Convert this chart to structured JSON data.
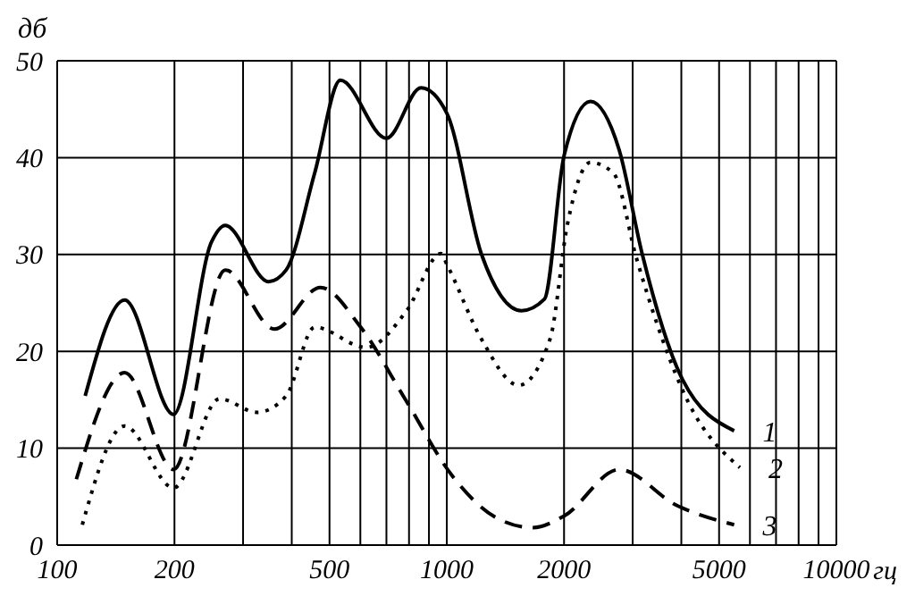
{
  "chart_data": {
    "type": "line",
    "xlabel": "гц",
    "ylabel": "дб",
    "log": "x",
    "grid": true,
    "legend": false,
    "marker": "none",
    "xlim": [
      100,
      10000
    ],
    "ylim": [
      0,
      50
    ],
    "xticks": [
      100,
      200,
      {
        "value": 300,
        "label": null
      },
      {
        "value": 400,
        "label": null
      },
      500,
      {
        "value": 600,
        "label": null
      },
      {
        "value": 700,
        "label": null
      },
      {
        "value": 800,
        "label": null
      },
      {
        "value": 900,
        "label": null
      },
      1000,
      2000,
      {
        "value": 3000,
        "label": null
      },
      {
        "value": 4000,
        "label": null
      },
      5000,
      {
        "value": 6000,
        "label": null
      },
      {
        "value": 7000,
        "label": null
      },
      {
        "value": 8000,
        "label": null
      },
      {
        "value": 9000,
        "label": null
      },
      10000
    ],
    "yticks": [
      0,
      10,
      20,
      30,
      40,
      50
    ],
    "series": [
      {
        "name": "1",
        "color": "#000000",
        "line_style": "solid",
        "x": [
          118,
          149,
          199,
          249,
          270,
          349,
          387,
          458,
          533,
          700,
          859,
          1000,
          1226,
          1555,
          1782,
          2000,
          2337,
          2770,
          3172,
          4027,
          5466
        ],
        "values": [
          15.4,
          25.3,
          13.5,
          31.3,
          33,
          27.2,
          28.4,
          38.4,
          48,
          42,
          47.2,
          44.6,
          30.1,
          24.2,
          25.4,
          40.2,
          45.8,
          40.8,
          30.1,
          17.1,
          11.8
        ]
      },
      {
        "name": "2",
        "color": "#000000",
        "line_style": "dotted",
        "x": [
          116,
          149,
          199,
          261,
          326,
          387,
          458,
          621,
          789,
          967,
          1000,
          1226,
          1530,
          1842,
          2040,
          2337,
          2678,
          3069,
          4162,
          5654
        ],
        "values": [
          2.1,
          12.3,
          5.9,
          15.1,
          13.7,
          15.4,
          22.5,
          20.4,
          24.2,
          30.1,
          29,
          21.3,
          16.5,
          21.3,
          33.1,
          39.5,
          38.4,
          29.6,
          14.8,
          8
        ]
      },
      {
        "name": "3",
        "color": "#000000",
        "line_style": "dashed",
        "x": [
          112,
          149,
          199,
          270,
          361,
          474,
          601,
          789,
          1035,
          1358,
          1664,
          2000,
          2770,
          3890,
          5466
        ],
        "values": [
          6.8,
          17.8,
          7.8,
          28.4,
          22.3,
          26.6,
          22.5,
          14.8,
          7.1,
          2.7,
          1.8,
          3,
          7.8,
          4.1,
          2.1
        ]
      }
    ]
  }
}
